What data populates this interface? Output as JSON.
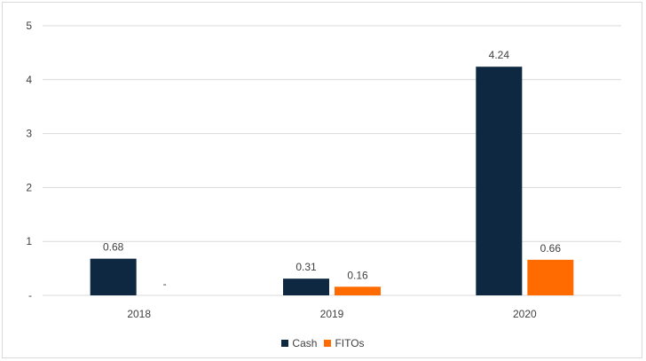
{
  "chart_data": {
    "type": "bar",
    "categories": [
      "2018",
      "2019",
      "2020"
    ],
    "series": [
      {
        "name": "Cash",
        "values": [
          0.68,
          0.31,
          4.24
        ],
        "labels": [
          "0.68",
          "0.31",
          "4.24"
        ],
        "color": "#0e2841"
      },
      {
        "name": "FITOs",
        "values": [
          0,
          0.16,
          0.66
        ],
        "labels": [
          "-",
          "0.16",
          "0.66"
        ],
        "color": "#ff6b00"
      }
    ],
    "y_ticks": [
      {
        "value": 0,
        "label": "-"
      },
      {
        "value": 1,
        "label": "1"
      },
      {
        "value": 2,
        "label": "2"
      },
      {
        "value": 3,
        "label": "3"
      },
      {
        "value": 4,
        "label": "4"
      },
      {
        "value": 5,
        "label": "5"
      }
    ],
    "ylim": [
      0,
      5
    ],
    "title": "",
    "xlabel": "",
    "ylabel": "",
    "grid": true,
    "legend": "bottom"
  }
}
